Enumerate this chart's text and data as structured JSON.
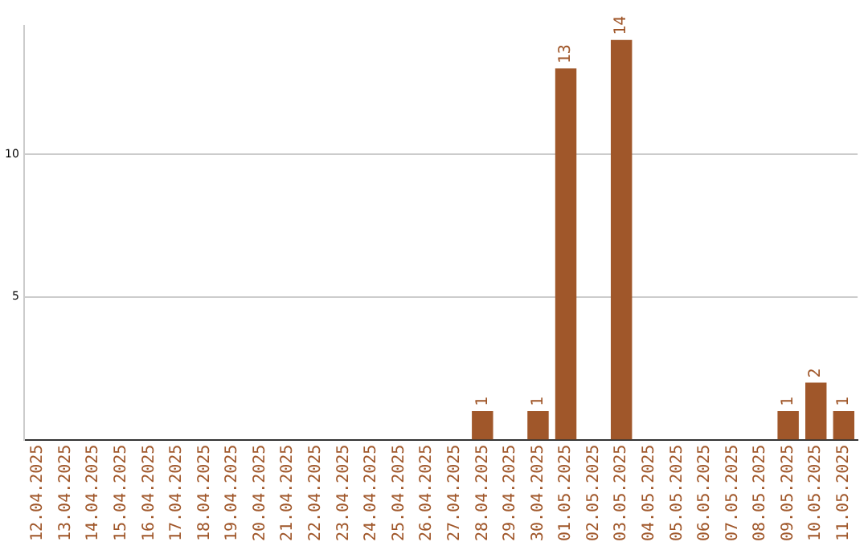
{
  "chart_data": {
    "type": "bar",
    "categories": [
      "12.04.2025",
      "13.04.2025",
      "14.04.2025",
      "15.04.2025",
      "16.04.2025",
      "17.04.2025",
      "18.04.2025",
      "19.04.2025",
      "20.04.2025",
      "21.04.2025",
      "22.04.2025",
      "23.04.2025",
      "24.04.2025",
      "25.04.2025",
      "26.04.2025",
      "27.04.2025",
      "28.04.2025",
      "29.04.2025",
      "30.04.2025",
      "01.05.2025",
      "02.05.2025",
      "03.05.2025",
      "04.05.2025",
      "05.05.2025",
      "06.05.2025",
      "07.05.2025",
      "08.05.2025",
      "09.05.2025",
      "10.05.2025",
      "11.05.2025"
    ],
    "values": [
      0,
      0,
      0,
      0,
      0,
      0,
      0,
      0,
      0,
      0,
      0,
      0,
      0,
      0,
      0,
      0,
      1,
      0,
      1,
      13,
      0,
      14,
      0,
      0,
      0,
      0,
      0,
      1,
      2,
      1
    ],
    "value_labels": [
      null,
      null,
      null,
      null,
      null,
      null,
      null,
      null,
      null,
      null,
      null,
      null,
      null,
      null,
      null,
      null,
      "1",
      null,
      "1",
      "13",
      null,
      "14",
      null,
      null,
      null,
      null,
      null,
      "1",
      "2",
      "1"
    ],
    "color": "#a0572a",
    "ylim": [
      0,
      14.5
    ],
    "yticks": [
      5,
      10
    ],
    "grid": "y",
    "legend": false
  }
}
